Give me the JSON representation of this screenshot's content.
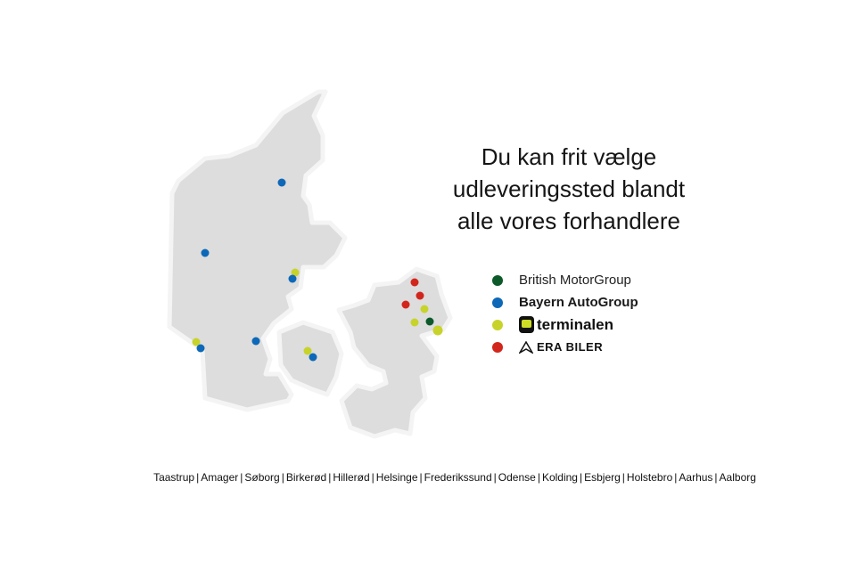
{
  "title": {
    "lines": [
      "Du kan frit vælge",
      "udleveringssted blandt",
      "alle vores forhandlere"
    ]
  },
  "colors": {
    "land": "#dddddd",
    "british_motorgroup": "#0c5a2a",
    "bayern_autogroup": "#0d68b8",
    "terminalen": "#c7d32b",
    "era_biler": "#d2261c"
  },
  "legend": [
    {
      "key": "british_motorgroup",
      "label": "British MotorGroup"
    },
    {
      "key": "bayern_autogroup",
      "label": "Bayern AutoGroup"
    },
    {
      "key": "terminalen",
      "label": "terminalen",
      "icon": "terminalen-logo-icon"
    },
    {
      "key": "era_biler",
      "label": "ERA BILER",
      "icon": "era-triangle-logo-icon"
    }
  ],
  "cities": [
    "Taastrup",
    "Amager",
    "Søborg",
    "Birkerød",
    "Hillerød",
    "Helsinge",
    "Frederikssund",
    "Odense",
    "Kolding",
    "Esbjerg",
    "Holstebro",
    "Aarhus",
    "Aalborg"
  ],
  "regions": [
    "jutland",
    "funen",
    "zealand"
  ]
}
